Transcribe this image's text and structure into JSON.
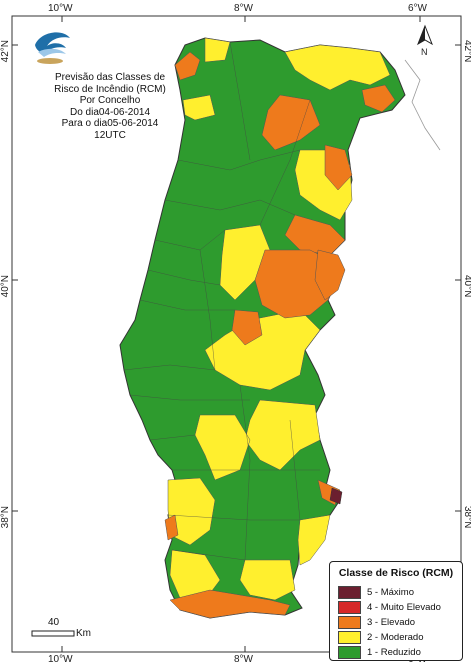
{
  "map": {
    "title_lines": [
      "Previsão das Classes de",
      "Risco de Incêndio (RCM)",
      "Por Concelho",
      "Do dia04-06-2014",
      "Para o dia05-06-2014",
      "12UTC"
    ],
    "longitude_ticks": [
      "10°W",
      "8°W",
      "6°W"
    ],
    "latitude_ticks": [
      "42°N",
      "40°N",
      "38°N"
    ],
    "north_label": "N",
    "scale": {
      "value": "40",
      "unit": "Km"
    },
    "colors": {
      "sea": "#ffffff",
      "spain": "#ffffff",
      "border": "#333333",
      "class5": "#6b1f2f",
      "class4": "#d62828",
      "class3": "#ee7a1c",
      "class2": "#ffef2e",
      "class1": "#2e9b2e",
      "logo_blue": "#1f6fa8",
      "logo_sand": "#c9a45c"
    }
  },
  "legend": {
    "title": "Classe de Risco (RCM)",
    "items": [
      {
        "label": "5 - Máximo",
        "color": "#6b1f2f"
      },
      {
        "label": "4 - Muito Elevado",
        "color": "#d62828"
      },
      {
        "label": "3 - Elevado",
        "color": "#ee7a1c"
      },
      {
        "label": "2 - Moderado",
        "color": "#ffef2e"
      },
      {
        "label": "1 - Reduzido",
        "color": "#2e9b2e"
      }
    ]
  }
}
